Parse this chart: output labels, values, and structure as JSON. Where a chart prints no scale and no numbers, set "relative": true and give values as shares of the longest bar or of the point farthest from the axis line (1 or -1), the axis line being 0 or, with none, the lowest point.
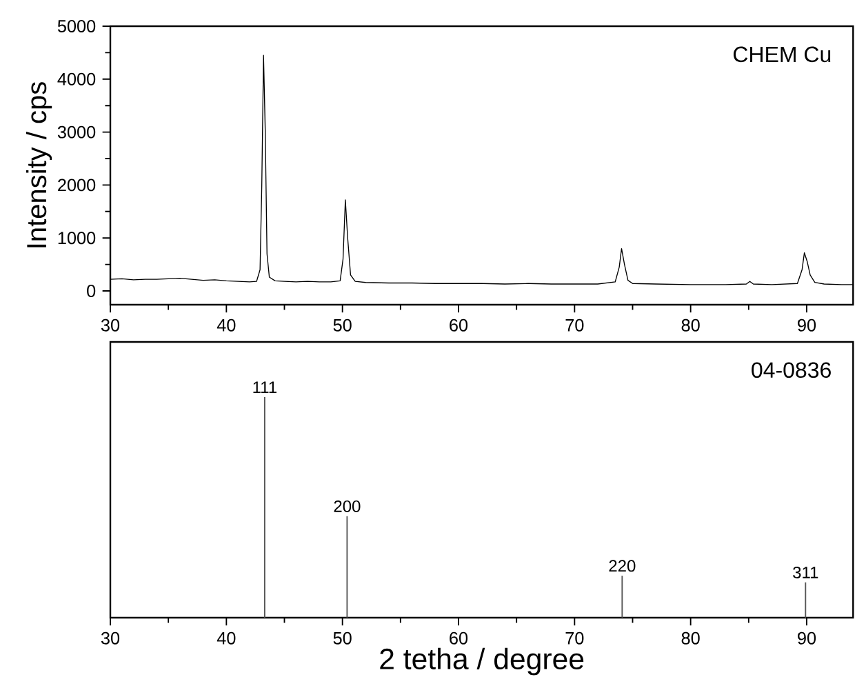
{
  "chart_data": [
    {
      "type": "line",
      "ylabel": "Intensity / cps",
      "annotations": [
        "CHEM Cu"
      ],
      "xlim": [
        30,
        94
      ],
      "xticks": [
        30,
        40,
        50,
        60,
        70,
        80,
        90
      ],
      "ylim": [
        -260,
        5000
      ],
      "yticks": [
        0,
        1000,
        2000,
        3000,
        4000,
        5000
      ],
      "series": [
        {
          "color": "#000000",
          "x": [
            30,
            31,
            32,
            33,
            34,
            35,
            36,
            37,
            38,
            39,
            40,
            41,
            42,
            42.6,
            42.9,
            43.05,
            43.2,
            43.35,
            43.5,
            43.7,
            44.2,
            45,
            46,
            47,
            48,
            49,
            49.8,
            50.05,
            50.25,
            50.45,
            50.7,
            51.1,
            52,
            54,
            56,
            58,
            60,
            62,
            64,
            66,
            68,
            70,
            72,
            73.5,
            73.85,
            74.05,
            74.3,
            74.6,
            75,
            77,
            80,
            83,
            84.8,
            85.1,
            85.4,
            87,
            89.2,
            89.6,
            89.8,
            90.05,
            90.3,
            90.7,
            91.5,
            93,
            94
          ],
          "values": [
            220,
            230,
            210,
            220,
            220,
            230,
            240,
            220,
            200,
            210,
            190,
            180,
            170,
            180,
            400,
            2000,
            4450,
            3000,
            700,
            260,
            190,
            180,
            170,
            180,
            170,
            170,
            190,
            600,
            1720,
            1000,
            300,
            180,
            160,
            150,
            150,
            140,
            140,
            140,
            130,
            140,
            130,
            130,
            130,
            170,
            450,
            800,
            500,
            200,
            140,
            130,
            120,
            120,
            130,
            180,
            130,
            120,
            140,
            400,
            720,
            550,
            300,
            160,
            130,
            120,
            120
          ]
        }
      ]
    },
    {
      "type": "bar",
      "xlabel": "2 tetha / degree",
      "annotations": [
        "04-0836",
        {
          "text": "111",
          "x": 43.3,
          "y": 1
        },
        {
          "text": "200",
          "x": 50.4,
          "y": 0.46
        },
        {
          "text": "220",
          "x": 74.1,
          "y": 0.19
        },
        {
          "text": "311",
          "x": 89.9,
          "y": 0.16
        }
      ],
      "relative": true,
      "xlim": [
        30,
        94
      ],
      "xticks": [
        30,
        40,
        50,
        60,
        70,
        80,
        90
      ],
      "x": [
        43.3,
        50.4,
        74.1,
        89.9
      ],
      "values": [
        1,
        0.46,
        0.19,
        0.16
      ],
      "color": "#555555"
    }
  ]
}
